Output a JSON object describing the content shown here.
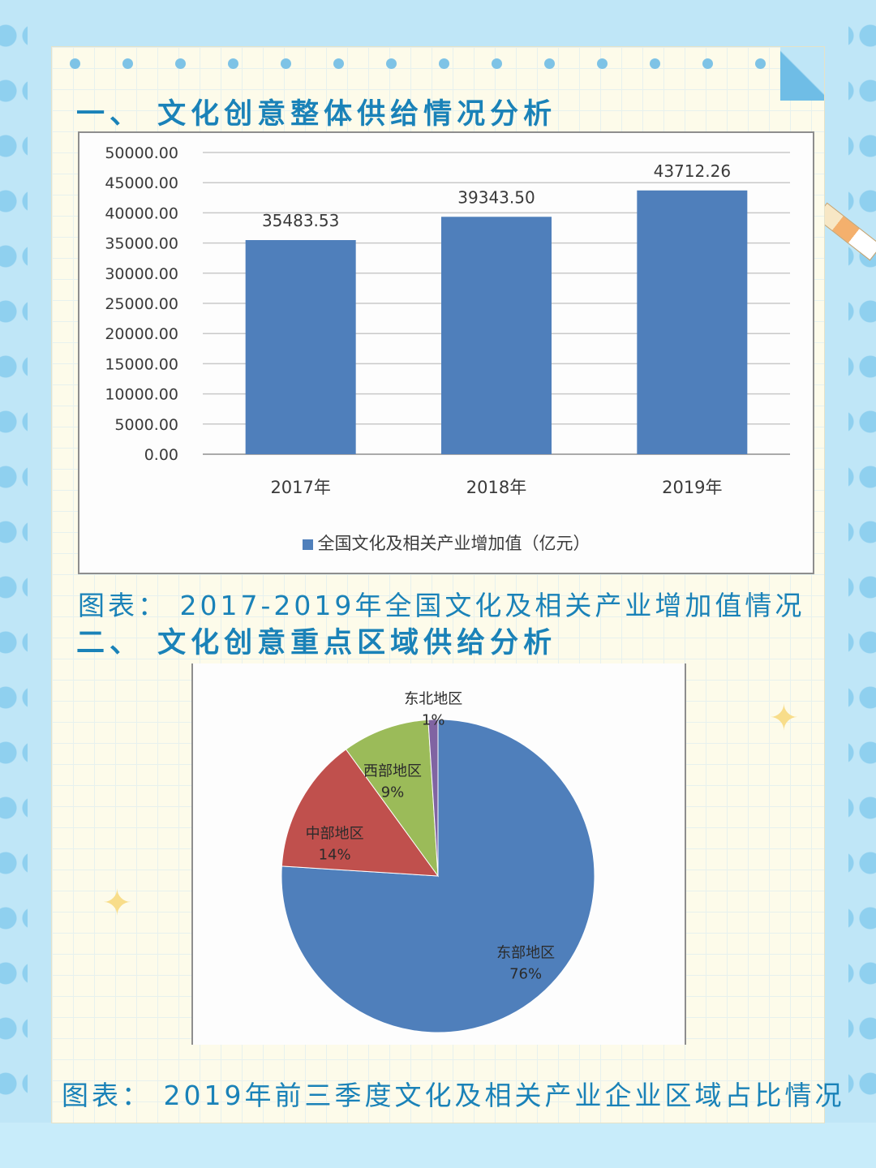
{
  "section1": {
    "title": "一、 文化创意整体供给情况分析"
  },
  "caption1": "图表： 2017-2019年全国文化及相关产业增加值情况",
  "section2": {
    "title": "二、 文化创意重点区域供给分析"
  },
  "caption2": "图表： 2019年前三季度文化及相关产业企业区域占比情况",
  "colors": {
    "bar": "#4f7fbb",
    "title": "#1a82b8"
  },
  "chart_data": [
    {
      "type": "bar",
      "categories": [
        "2017年",
        "2018年",
        "2019年"
      ],
      "values": [
        35483.53,
        39343.5,
        43712.26
      ],
      "value_labels": [
        "35483.53",
        "39343.50",
        "43712.26"
      ],
      "yticks": [
        "0.00",
        "5000.00",
        "10000.00",
        "15000.00",
        "20000.00",
        "25000.00",
        "30000.00",
        "35000.00",
        "40000.00",
        "45000.00",
        "50000.00"
      ],
      "ylim": [
        0,
        50000
      ],
      "legend": "全国文化及相关产业增加值（亿元）",
      "grid": true,
      "legend_position": "bottom"
    },
    {
      "type": "pie",
      "slices": [
        {
          "label": "东部地区",
          "value": 76,
          "pct": "76%",
          "color": "#4f7fbb"
        },
        {
          "label": "中部地区",
          "value": 14,
          "pct": "14%",
          "color": "#c0504d"
        },
        {
          "label": "西部地区",
          "value": 9,
          "pct": "9%",
          "color": "#9bbb59"
        },
        {
          "label": "东北地区",
          "value": 1,
          "pct": "1%",
          "color": "#8064a2"
        }
      ]
    }
  ]
}
